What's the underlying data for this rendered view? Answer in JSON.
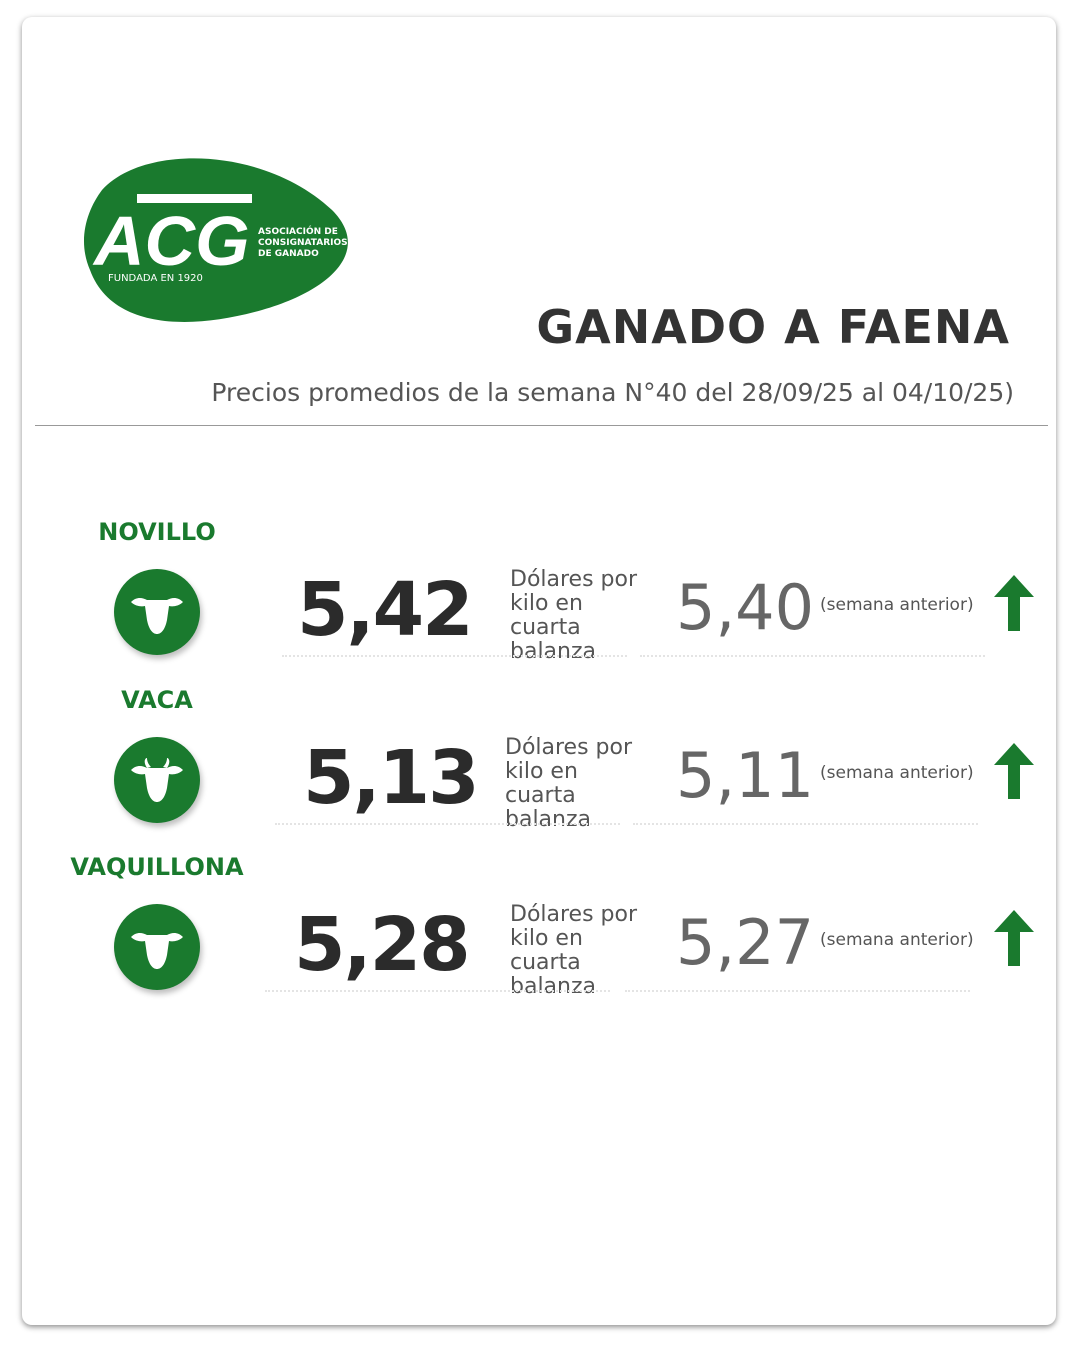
{
  "logo": {
    "acronym": "ACG",
    "name_lines": [
      "ASOCIACIÓN DE",
      "CONSIGNATARIOS",
      "DE GANADO"
    ],
    "founded": "FUNDADA EN 1920"
  },
  "title": "GANADO A FAENA",
  "subtitle": "Precios promedios de la semana N°40 del 28/09/25 al 04/10/25)",
  "colors": {
    "brand_green": "#1a7a2e",
    "text_dark": "#2b2b2b"
  },
  "rows": [
    {
      "category": "NOVILLO",
      "icon": "cattle-head-icon",
      "price": "5,42",
      "unit": "Dólares por kilo en cuarta balanza",
      "previous": "5,40",
      "previous_label": "(semana anterior)",
      "trend": "up"
    },
    {
      "category": "VACA",
      "icon": "cow-head-icon",
      "price": "5,13",
      "unit": "Dólares por kilo en cuarta balanza",
      "previous": "5,11",
      "previous_label": "(semana anterior)",
      "trend": "up"
    },
    {
      "category": "VAQUILLONA",
      "icon": "cattle-head-icon",
      "price": "5,28",
      "unit": "Dólares por kilo en cuarta balanza",
      "previous": "5,27",
      "previous_label": "(semana anterior)",
      "trend": "up"
    }
  ]
}
